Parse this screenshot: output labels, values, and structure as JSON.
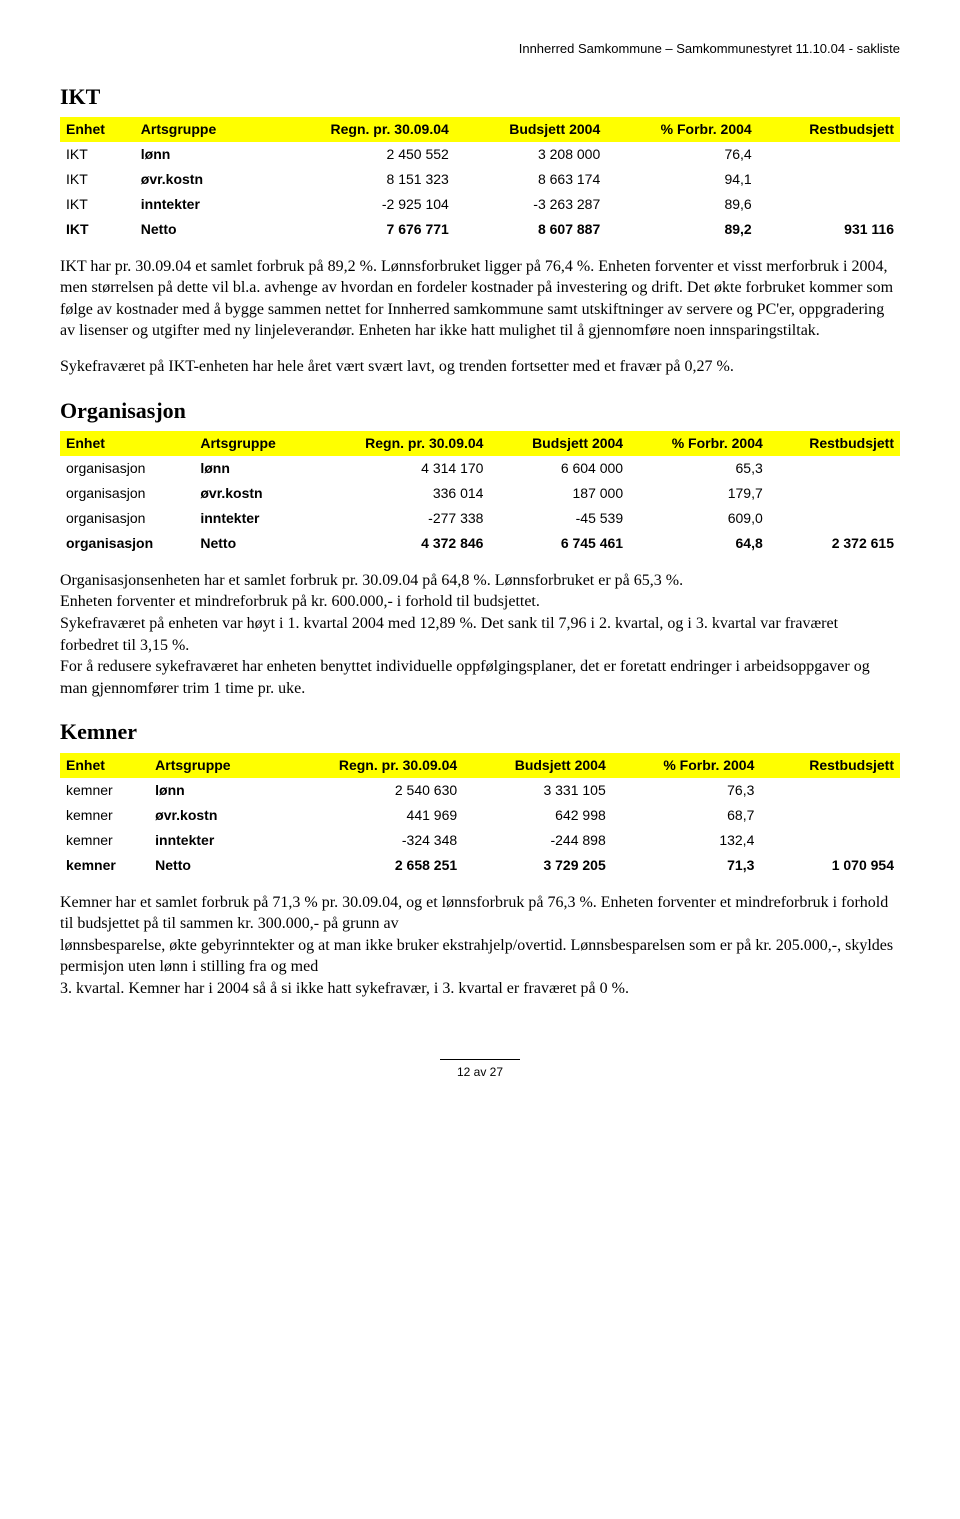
{
  "header": {
    "text": "Innherred Samkommune – Samkommunestyret 11.10.04 - sakliste"
  },
  "sections": {
    "ikt": {
      "title": "IKT",
      "table": {
        "columns": [
          "Enhet",
          "Artsgruppe",
          "Regn. pr. 30.09.04",
          "Budsjett 2004",
          "% Forbr. 2004",
          "Restbudsjett"
        ],
        "rows": [
          {
            "enhet": "IKT",
            "arts": "lønn",
            "regn": "2 450 552",
            "bud": "3 208 000",
            "pct": "76,4",
            "rest": "",
            "netto": false
          },
          {
            "enhet": "IKT",
            "arts": "øvr.kostn",
            "regn": "8 151 323",
            "bud": "8 663 174",
            "pct": "94,1",
            "rest": "",
            "netto": false
          },
          {
            "enhet": "IKT",
            "arts": "inntekter",
            "regn": "-2 925 104",
            "bud": "-3 263 287",
            "pct": "89,6",
            "rest": "",
            "netto": false
          },
          {
            "enhet": "IKT",
            "arts": "Netto",
            "regn": "7 676 771",
            "bud": "8 607 887",
            "pct": "89,2",
            "rest": "931 116",
            "netto": true
          }
        ]
      },
      "para1": "IKT har pr. 30.09.04 et samlet forbruk på 89,2 %. Lønnsforbruket ligger på 76,4 %. Enheten forventer et visst merforbruk i 2004, men størrelsen på dette vil bl.a. avhenge av hvordan en fordeler kostnader på investering og drift. Det økte forbruket kommer som følge av kostnader med å bygge sammen nettet for Innherred samkommune samt utskiftninger av servere og PC'er, oppgradering av lisenser og utgifter med ny linjeleverandør. Enheten har ikke hatt mulighet til å  gjennomføre noen innsparingstiltak.",
      "para2": "Sykefraværet på IKT-enheten har hele året vært svært lavt, og trenden fortsetter med et fravær på 0,27 %."
    },
    "organisasjon": {
      "title": "Organisasjon",
      "table": {
        "columns": [
          "Enhet",
          "Artsgruppe",
          "Regn. pr. 30.09.04",
          "Budsjett 2004",
          "% Forbr. 2004",
          "Restbudsjett"
        ],
        "rows": [
          {
            "enhet": "organisasjon",
            "arts": "lønn",
            "regn": "4 314 170",
            "bud": "6 604 000",
            "pct": "65,3",
            "rest": "",
            "netto": false
          },
          {
            "enhet": "organisasjon",
            "arts": "øvr.kostn",
            "regn": "336 014",
            "bud": "187 000",
            "pct": "179,7",
            "rest": "",
            "netto": false
          },
          {
            "enhet": "organisasjon",
            "arts": "inntekter",
            "regn": "-277 338",
            "bud": "-45 539",
            "pct": "609,0",
            "rest": "",
            "netto": false
          },
          {
            "enhet": "organisasjon",
            "arts": "Netto",
            "regn": "4 372 846",
            "bud": "6 745 461",
            "pct": "64,8",
            "rest": "2 372 615",
            "netto": true
          }
        ]
      },
      "para1": "Organisasjonsenheten har et samlet forbruk pr. 30.09.04 på 64,8 %. Lønnsforbruket er på 65,3 %.",
      "para2": "Enheten forventer et mindreforbruk på kr. 600.000,- i forhold til budsjettet.",
      "para3": "Sykefraværet på enheten var høyt i 1. kvartal 2004 med 12,89 %. Det sank til 7,96 i 2. kvartal, og i 3. kvartal var fraværet forbedret til 3,15 %.",
      "para4": "For å redusere sykefraværet har enheten benyttet individuelle oppfølgingsplaner, det er foretatt endringer i arbeidsoppgaver og man gjennomfører trim 1 time pr. uke."
    },
    "kemner": {
      "title": "Kemner",
      "table": {
        "columns": [
          "Enhet",
          "Artsgruppe",
          "Regn. pr. 30.09.04",
          "Budsjett 2004",
          "% Forbr. 2004",
          "Restbudsjett"
        ],
        "rows": [
          {
            "enhet": "kemner",
            "arts": "lønn",
            "regn": "2 540 630",
            "bud": "3 331 105",
            "pct": "76,3",
            "rest": "",
            "netto": false
          },
          {
            "enhet": "kemner",
            "arts": "øvr.kostn",
            "regn": "441 969",
            "bud": "642 998",
            "pct": "68,7",
            "rest": "",
            "netto": false
          },
          {
            "enhet": "kemner",
            "arts": "inntekter",
            "regn": "-324 348",
            "bud": "-244 898",
            "pct": "132,4",
            "rest": "",
            "netto": false
          },
          {
            "enhet": "kemner",
            "arts": "Netto",
            "regn": "2 658 251",
            "bud": "3 729 205",
            "pct": "71,3",
            "rest": "1 070 954",
            "netto": true
          }
        ]
      },
      "para1": "Kemner har et samlet forbruk på 71,3 % pr. 30.09.04, og et lønnsforbruk på 76,3 %. Enheten forventer et mindreforbruk i forhold til budsjettet på til sammen kr. 300.000,- på grunn av",
      "para2": "lønnsbesparelse, økte gebyrinntekter og at man ikke bruker ekstrahjelp/overtid. Lønnsbesparelsen  som er på  kr.  205.000,-, skyldes  permisjon uten lønn i stilling fra og med",
      "para3": "3. kvartal. Kemner har i 2004 så å si ikke hatt sykefravær, i 3. kvartal er fraværet på 0 %."
    }
  },
  "footer": {
    "text": "12 av 27"
  }
}
